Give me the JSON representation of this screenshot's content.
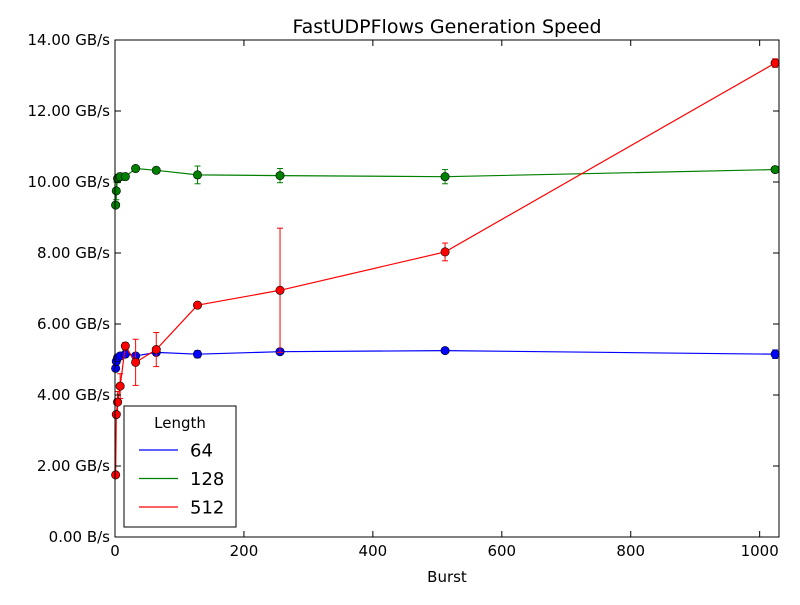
{
  "chart_data": {
    "type": "line",
    "title": "FastUDPFlows Generation Speed",
    "xlabel": "Burst",
    "ylabel": "",
    "xlim": [
      0,
      1030
    ],
    "ylim": [
      0,
      14
    ],
    "x_ticks": [
      0,
      200,
      400,
      600,
      800,
      1000
    ],
    "y_ticks": [
      0,
      2,
      4,
      6,
      8,
      10,
      12,
      14
    ],
    "y_tick_labels": [
      "0.00 B/s",
      "2.00 GB/s",
      "4.00 GB/s",
      "6.00 GB/s",
      "8.00 GB/s",
      "10.00 GB/s",
      "12.00 GB/s",
      "14.00 GB/s"
    ],
    "grid": false,
    "legend": {
      "title": "Length",
      "position": "lower-left"
    },
    "x": [
      1,
      2,
      4,
      8,
      16,
      32,
      64,
      128,
      256,
      512,
      1024
    ],
    "series": [
      {
        "name": "64",
        "color": "#0000ff",
        "values": [
          4.75,
          4.95,
          5.05,
          5.1,
          5.15,
          5.1,
          5.2,
          5.15,
          5.22,
          5.25,
          5.15
        ],
        "errors": [
          0.05,
          0.05,
          0.08,
          0.05,
          0.05,
          0.05,
          0.08,
          0.1,
          0.08,
          0.08,
          0.12
        ]
      },
      {
        "name": "128",
        "color": "#008000",
        "values": [
          9.35,
          9.75,
          10.1,
          10.15,
          10.15,
          10.38,
          10.33,
          10.2,
          10.18,
          10.15,
          10.35
        ],
        "errors": [
          0.05,
          0.25,
          0.12,
          0.1,
          0.08,
          0.08,
          0.08,
          0.25,
          0.2,
          0.2,
          0.08
        ]
      },
      {
        "name": "512",
        "color": "#ff0000",
        "values": [
          1.75,
          3.45,
          3.8,
          4.25,
          5.38,
          4.92,
          5.28,
          6.53,
          6.95,
          8.03,
          13.35
        ],
        "errors": [
          0.05,
          0.05,
          0.3,
          0.35,
          0.1,
          0.65,
          0.48,
          0.05,
          1.75,
          0.25,
          0.12
        ]
      }
    ]
  }
}
